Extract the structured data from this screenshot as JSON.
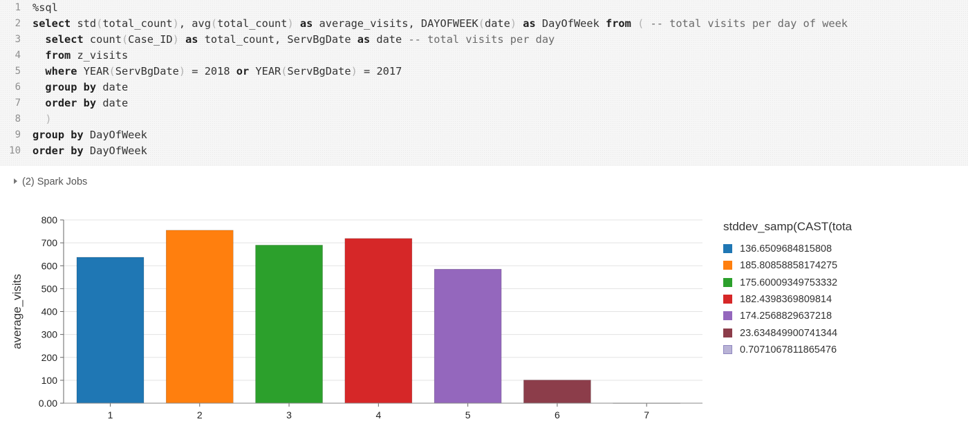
{
  "code_cell": {
    "lines": [
      {
        "n": "1",
        "tokens": [
          {
            "t": "%sql",
            "c": "plain"
          }
        ]
      },
      {
        "n": "2",
        "tokens": [
          {
            "t": "select",
            "c": "kw"
          },
          {
            "t": " std",
            "c": "plain"
          },
          {
            "t": "(",
            "c": "paren"
          },
          {
            "t": "total_count",
            "c": "plain"
          },
          {
            "t": ")",
            "c": "paren"
          },
          {
            "t": ", avg",
            "c": "plain"
          },
          {
            "t": "(",
            "c": "paren"
          },
          {
            "t": "total_count",
            "c": "plain"
          },
          {
            "t": ")",
            "c": "paren"
          },
          {
            "t": " ",
            "c": "plain"
          },
          {
            "t": "as",
            "c": "kw"
          },
          {
            "t": " average_visits, DAYOFWEEK",
            "c": "plain"
          },
          {
            "t": "(",
            "c": "paren"
          },
          {
            "t": "date",
            "c": "plain"
          },
          {
            "t": ")",
            "c": "paren"
          },
          {
            "t": " ",
            "c": "plain"
          },
          {
            "t": "as",
            "c": "kw"
          },
          {
            "t": " DayOfWeek ",
            "c": "plain"
          },
          {
            "t": "from",
            "c": "kw"
          },
          {
            "t": " ",
            "c": "plain"
          },
          {
            "t": "(",
            "c": "paren"
          },
          {
            "t": " -- total visits per day of week",
            "c": "comment"
          }
        ]
      },
      {
        "n": "3",
        "tokens": [
          {
            "t": "  ",
            "c": "plain"
          },
          {
            "t": "select",
            "c": "kw"
          },
          {
            "t": " count",
            "c": "plain"
          },
          {
            "t": "(",
            "c": "paren"
          },
          {
            "t": "Case_ID",
            "c": "plain"
          },
          {
            "t": ")",
            "c": "paren"
          },
          {
            "t": " ",
            "c": "plain"
          },
          {
            "t": "as",
            "c": "kw"
          },
          {
            "t": " total_count, ServBgDate ",
            "c": "plain"
          },
          {
            "t": "as",
            "c": "kw"
          },
          {
            "t": " date ",
            "c": "plain"
          },
          {
            "t": "-- total visits per day",
            "c": "comment"
          }
        ]
      },
      {
        "n": "4",
        "tokens": [
          {
            "t": "  ",
            "c": "plain"
          },
          {
            "t": "from",
            "c": "kw"
          },
          {
            "t": " z_visits",
            "c": "plain"
          }
        ]
      },
      {
        "n": "5",
        "tokens": [
          {
            "t": "  ",
            "c": "plain"
          },
          {
            "t": "where",
            "c": "kw"
          },
          {
            "t": " YEAR",
            "c": "plain"
          },
          {
            "t": "(",
            "c": "paren"
          },
          {
            "t": "ServBgDate",
            "c": "plain"
          },
          {
            "t": ")",
            "c": "paren"
          },
          {
            "t": " = 2018 ",
            "c": "plain"
          },
          {
            "t": "or",
            "c": "kw"
          },
          {
            "t": " YEAR",
            "c": "plain"
          },
          {
            "t": "(",
            "c": "paren"
          },
          {
            "t": "ServBgDate",
            "c": "plain"
          },
          {
            "t": ")",
            "c": "paren"
          },
          {
            "t": " = 2017",
            "c": "plain"
          }
        ]
      },
      {
        "n": "6",
        "tokens": [
          {
            "t": "  ",
            "c": "plain"
          },
          {
            "t": "group by",
            "c": "kw"
          },
          {
            "t": " date",
            "c": "plain"
          }
        ]
      },
      {
        "n": "7",
        "tokens": [
          {
            "t": "  ",
            "c": "plain"
          },
          {
            "t": "order by",
            "c": "kw"
          },
          {
            "t": " date",
            "c": "plain"
          }
        ]
      },
      {
        "n": "8",
        "tokens": [
          {
            "t": "  ",
            "c": "plain"
          },
          {
            "t": ")",
            "c": "paren"
          }
        ]
      },
      {
        "n": "9",
        "tokens": [
          {
            "t": "group by",
            "c": "kw"
          },
          {
            "t": " DayOfWeek",
            "c": "plain"
          }
        ]
      },
      {
        "n": "10",
        "tokens": [
          {
            "t": "order by",
            "c": "kw"
          },
          {
            "t": " DayOfWeek",
            "c": "plain"
          }
        ]
      }
    ]
  },
  "spark_jobs": {
    "label": "(2) Spark Jobs"
  },
  "chart_data": {
    "type": "bar",
    "categories": [
      "1",
      "2",
      "3",
      "4",
      "5",
      "6",
      "7"
    ],
    "values": [
      637,
      755,
      690,
      719,
      585,
      101,
      1
    ],
    "ylabel": "average_visits",
    "ylim": [
      0,
      800
    ],
    "yticks": [
      0,
      100,
      200,
      300,
      400,
      500,
      600,
      700,
      800
    ],
    "ytick_labels": [
      "0.00",
      "100",
      "200",
      "300",
      "400",
      "500",
      "600",
      "700",
      "800"
    ],
    "grid": true,
    "colors": [
      "#1f77b4",
      "#ff7f0e",
      "#2ca02c",
      "#d62728",
      "#9467bd",
      "#8c3d4a",
      "#b9b3d6"
    ],
    "legend": {
      "title": "stddev_samp(CAST(tota",
      "placement": "right",
      "entries": [
        "136.6509684815808",
        "185.80858858174275",
        "175.60009349753332",
        "182.4398369809814",
        "174.2568829637218",
        "23.634849900741344",
        "0.7071067811865476"
      ]
    }
  }
}
